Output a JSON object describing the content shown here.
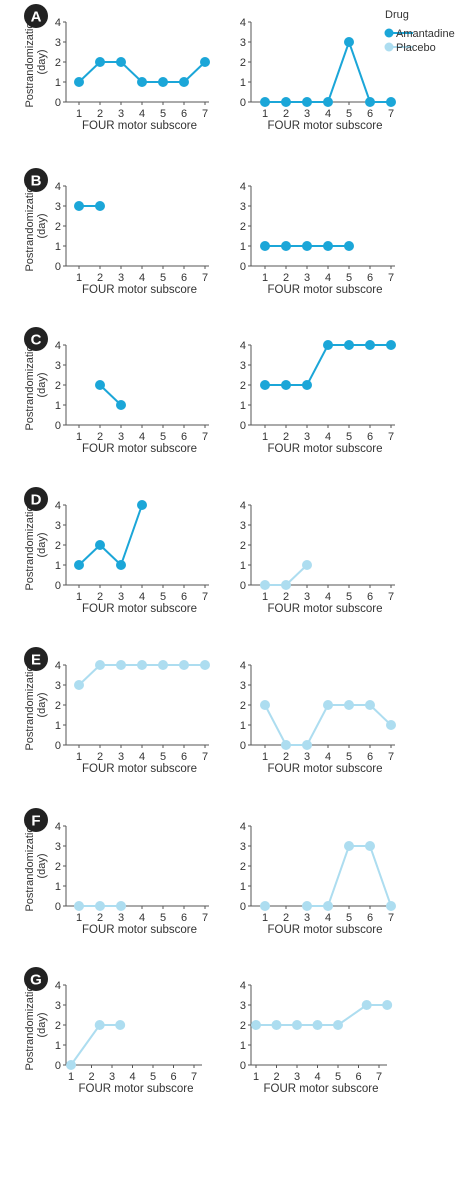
{
  "legend": {
    "title": "Drug",
    "items": [
      {
        "label": "Amantadine",
        "color": "#1BA6D8"
      },
      {
        "label": "Placebo",
        "color": "#ADDDF0"
      }
    ]
  },
  "colors": {
    "amantadine": "#1BA6D8",
    "placebo": "#ADDDF0",
    "axis": "#555555",
    "badge": "#222222"
  },
  "chart_data": [
    {
      "type": "line",
      "panel": "A",
      "position": "left",
      "drug": "Amantadine",
      "xlabel": "FOUR motor subscore",
      "ylabel": "Postrandomization (day)",
      "x_ticks": [
        1,
        2,
        3,
        4,
        5,
        6,
        7
      ],
      "y_ticks": [
        0,
        1,
        2,
        3,
        4
      ],
      "ylim": [
        0,
        4
      ],
      "points": [
        [
          1,
          1
        ],
        [
          2,
          2
        ],
        [
          3,
          2
        ],
        [
          4,
          1
        ],
        [
          5,
          1
        ],
        [
          6,
          1
        ],
        [
          7,
          2
        ]
      ]
    },
    {
      "type": "line",
      "panel": "A",
      "position": "right",
      "drug": "Amantadine",
      "xlabel": "FOUR motor subscore",
      "ylabel": "",
      "x_ticks": [
        1,
        2,
        3,
        4,
        5,
        6,
        7
      ],
      "y_ticks": [
        0,
        1,
        2,
        3,
        4
      ],
      "ylim": [
        0,
        4
      ],
      "points": [
        [
          1,
          0
        ],
        [
          2,
          0
        ],
        [
          3,
          0
        ],
        [
          4,
          0
        ],
        [
          5,
          3
        ],
        [
          6,
          0
        ],
        [
          7,
          0
        ]
      ]
    },
    {
      "type": "line",
      "panel": "B",
      "position": "left",
      "drug": "Amantadine",
      "xlabel": "FOUR motor subscore",
      "ylabel": "Postrandomization (day)",
      "x_ticks": [
        1,
        2,
        3,
        4,
        5,
        6,
        7
      ],
      "y_ticks": [
        0,
        1,
        2,
        3,
        4
      ],
      "ylim": [
        0,
        4
      ],
      "points": [
        [
          1,
          3
        ],
        [
          2,
          3
        ]
      ]
    },
    {
      "type": "line",
      "panel": "B",
      "position": "right",
      "drug": "Amantadine",
      "xlabel": "FOUR motor subscore",
      "ylabel": "",
      "x_ticks": [
        1,
        2,
        3,
        4,
        5,
        6,
        7
      ],
      "y_ticks": [
        0,
        1,
        2,
        3,
        4
      ],
      "ylim": [
        0,
        4
      ],
      "points": [
        [
          1,
          1
        ],
        [
          2,
          1
        ],
        [
          3,
          1
        ],
        [
          4,
          1
        ],
        [
          5,
          1
        ]
      ]
    },
    {
      "type": "line",
      "panel": "C",
      "position": "left",
      "drug": "Amantadine",
      "xlabel": "FOUR motor subscore",
      "ylabel": "Postrandomization (day)",
      "x_ticks": [
        1,
        2,
        3,
        4,
        5,
        6,
        7
      ],
      "y_ticks": [
        0,
        1,
        2,
        3,
        4
      ],
      "ylim": [
        0,
        4
      ],
      "points": [
        [
          2,
          2
        ],
        [
          3,
          1
        ]
      ]
    },
    {
      "type": "line",
      "panel": "C",
      "position": "right",
      "drug": "Amantadine",
      "xlabel": "FOUR motor subscore",
      "ylabel": "",
      "x_ticks": [
        1,
        2,
        3,
        4,
        5,
        6,
        7
      ],
      "y_ticks": [
        0,
        1,
        2,
        3,
        4
      ],
      "ylim": [
        0,
        4
      ],
      "points": [
        [
          1,
          2
        ],
        [
          2,
          2
        ],
        [
          3,
          2
        ],
        [
          4,
          4
        ],
        [
          5,
          4
        ],
        [
          6,
          4
        ],
        [
          7,
          4
        ]
      ]
    },
    {
      "type": "line",
      "panel": "D",
      "position": "left",
      "drug": "Amantadine",
      "xlabel": "FOUR motor subscore",
      "ylabel": "Postrandomization (day)",
      "x_ticks": [
        1,
        2,
        3,
        4,
        5,
        6,
        7
      ],
      "y_ticks": [
        0,
        1,
        2,
        3,
        4
      ],
      "ylim": [
        0,
        4
      ],
      "points": [
        [
          1,
          1
        ],
        [
          2,
          2
        ],
        [
          3,
          1
        ],
        [
          4,
          4
        ]
      ]
    },
    {
      "type": "line",
      "panel": "D",
      "position": "right",
      "drug": "Placebo",
      "xlabel": "FOUR motor subscore",
      "ylabel": "",
      "x_ticks": [
        1,
        2,
        3,
        4,
        5,
        6,
        7
      ],
      "y_ticks": [
        0,
        1,
        2,
        3,
        4
      ],
      "ylim": [
        0,
        4
      ],
      "points": [
        [
          1,
          0
        ],
        [
          2,
          0
        ],
        [
          3,
          1
        ]
      ]
    },
    {
      "type": "line",
      "panel": "E",
      "position": "left",
      "drug": "Placebo",
      "xlabel": "FOUR motor subscore",
      "ylabel": "Postrandomization (day)",
      "x_ticks": [
        1,
        2,
        3,
        4,
        5,
        6,
        7
      ],
      "y_ticks": [
        0,
        1,
        2,
        3,
        4
      ],
      "ylim": [
        0,
        4
      ],
      "points": [
        [
          1,
          3
        ],
        [
          2,
          4
        ],
        [
          3,
          4
        ],
        [
          4,
          4
        ],
        [
          5,
          4
        ],
        [
          6,
          4
        ],
        [
          7,
          4
        ]
      ]
    },
    {
      "type": "line",
      "panel": "E",
      "position": "right",
      "drug": "Placebo",
      "xlabel": "FOUR motor subscore",
      "ylabel": "",
      "x_ticks": [
        1,
        2,
        3,
        4,
        5,
        6,
        7
      ],
      "y_ticks": [
        0,
        1,
        2,
        3,
        4
      ],
      "ylim": [
        0,
        4
      ],
      "points": [
        [
          1,
          2
        ],
        [
          2,
          0
        ],
        [
          3,
          0
        ],
        [
          4,
          2
        ],
        [
          5,
          2
        ],
        [
          6,
          2
        ],
        [
          7,
          1
        ]
      ]
    },
    {
      "type": "line",
      "panel": "F",
      "position": "left",
      "drug": "Placebo",
      "xlabel": "FOUR motor subscore",
      "ylabel": "Postrandomization (day)",
      "x_ticks": [
        1,
        2,
        3,
        4,
        5,
        6,
        7
      ],
      "y_ticks": [
        0,
        1,
        2,
        3,
        4
      ],
      "ylim": [
        0,
        4
      ],
      "points": [
        [
          1,
          0
        ],
        [
          2,
          0
        ],
        [
          3,
          0
        ]
      ]
    },
    {
      "type": "line",
      "panel": "F",
      "position": "right",
      "drug": "Placebo",
      "xlabel": "FOUR motor subscore",
      "ylabel": "",
      "x_ticks": [
        1,
        2,
        3,
        4,
        5,
        6,
        7
      ],
      "y_ticks": [
        0,
        1,
        2,
        3,
        4
      ],
      "ylim": [
        0,
        4
      ],
      "points": [
        [
          1,
          0
        ],
        [
          3,
          0
        ],
        [
          4,
          0
        ],
        [
          5,
          3
        ],
        [
          6,
          3
        ],
        [
          7,
          0
        ]
      ],
      "segments": [
        [
          1,
          2
        ],
        [
          2,
          3
        ],
        [
          3,
          4
        ],
        [
          4,
          5
        ]
      ]
    },
    {
      "type": "line",
      "panel": "G",
      "position": "left",
      "drug": "Placebo",
      "xlabel": "FOUR motor subscore",
      "ylabel": "Postrandomization (day)",
      "x_ticks": [
        1,
        2,
        3,
        4,
        5,
        6,
        7
      ],
      "y_ticks": [
        0,
        1,
        2,
        3,
        4
      ],
      "ylim": [
        0,
        4
      ],
      "points": [
        [
          1,
          0
        ],
        [
          2.4,
          2
        ],
        [
          3.4,
          2
        ]
      ]
    },
    {
      "type": "line",
      "panel": "G",
      "position": "right",
      "drug": "Placebo",
      "xlabel": "FOUR motor subscore",
      "ylabel": "",
      "x_ticks": [
        1,
        2,
        3,
        4,
        5,
        6,
        7
      ],
      "y_ticks": [
        0,
        1,
        2,
        3,
        4
      ],
      "ylim": [
        0,
        4
      ],
      "points": [
        [
          1,
          2
        ],
        [
          2,
          2
        ],
        [
          3,
          2
        ],
        [
          4,
          2
        ],
        [
          5,
          2
        ],
        [
          6.4,
          3
        ],
        [
          7.4,
          3
        ]
      ]
    }
  ]
}
